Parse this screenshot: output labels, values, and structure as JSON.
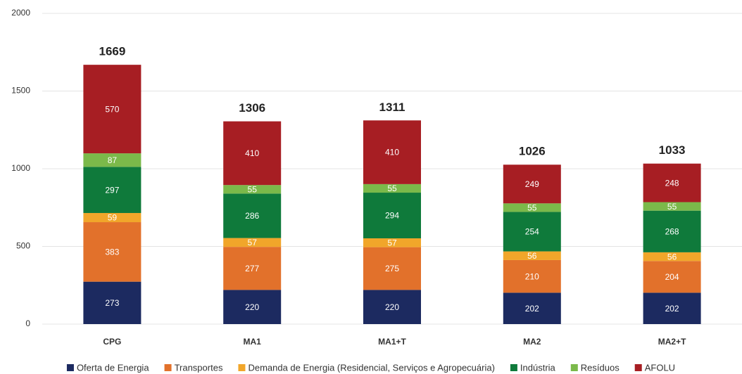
{
  "chart_data": {
    "type": "stacked-bar",
    "categories": [
      "CPG",
      "MA1",
      "MA1+T",
      "MA2",
      "MA2+T"
    ],
    "series": [
      {
        "name": "Oferta de Energia",
        "color": "#1c2a60",
        "values": [
          273,
          220,
          220,
          202,
          202
        ]
      },
      {
        "name": "Transportes",
        "color": "#e2712b",
        "values": [
          383,
          277,
          275,
          210,
          204
        ]
      },
      {
        "name": "Demanda de Energia (Residencial, Serviços e Agropecuária)",
        "color": "#f1a62a",
        "values": [
          59,
          57,
          57,
          56,
          56
        ]
      },
      {
        "name": "Indústria",
        "color": "#0f7a3b",
        "values": [
          297,
          286,
          294,
          254,
          268
        ]
      },
      {
        "name": "Resíduos",
        "color": "#7bb94a",
        "values": [
          87,
          55,
          55,
          55,
          55
        ]
      },
      {
        "name": "AFOLU",
        "color": "#a71e23",
        "values": [
          570,
          410,
          410,
          249,
          248
        ]
      }
    ],
    "totals": [
      1669,
      1306,
      1311,
      1026,
      1033
    ],
    "ylim": [
      0,
      2000
    ],
    "yticks": [
      0,
      500,
      1000,
      1500,
      2000
    ],
    "grid": true
  }
}
